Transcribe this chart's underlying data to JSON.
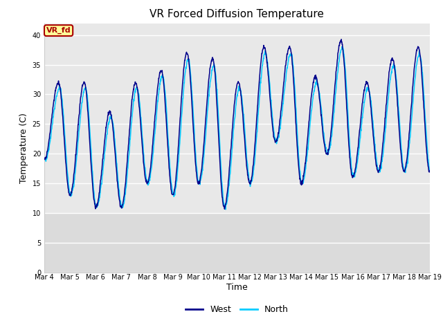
{
  "title": "VR Forced Diffusion Temperature",
  "xlabel": "Time",
  "ylabel": "Temperature (C)",
  "ylim": [
    0,
    42
  ],
  "yticks": [
    0,
    5,
    10,
    15,
    20,
    25,
    30,
    35,
    40
  ],
  "n_days": 15,
  "xtick_labels": [
    "Mar 4",
    "Mar 5",
    "Mar 6",
    "Mar 7",
    "Mar 8",
    "Mar 9",
    "Mar 10",
    "Mar 11",
    "Mar 12",
    "Mar 13",
    "Mar 14",
    "Mar 15",
    "Mar 16",
    "Mar 17",
    "Mar 18",
    "Mar 19"
  ],
  "west_color": "#00008B",
  "north_color": "#00CCFF",
  "plot_bg_color": "#E8E8E8",
  "fig_bg_color": "#FFFFFF",
  "legend_west": "West",
  "legend_north": "North",
  "annotation_text": "VR_fd",
  "annotation_bg": "#FFFF99",
  "annotation_border": "#AA0000",
  "day_peaks": [
    32,
    32,
    27,
    32,
    34,
    37,
    36,
    32,
    38,
    38,
    33,
    39,
    32,
    36,
    38
  ],
  "day_troughs": [
    19,
    13,
    11,
    11,
    15,
    13,
    15,
    11,
    15,
    22,
    15,
    20,
    16,
    17,
    17
  ],
  "grid_color": "#FFFFFF",
  "tick_fontsize": 7,
  "label_fontsize": 9,
  "title_fontsize": 11
}
